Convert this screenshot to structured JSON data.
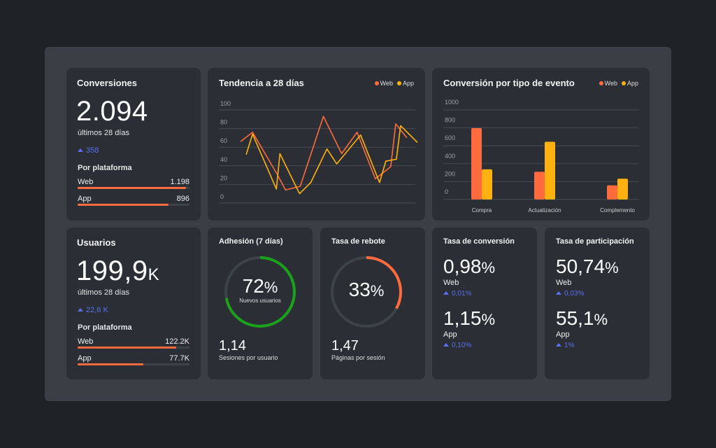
{
  "colors": {
    "web": "#ff6b3d",
    "app": "#ffb20f",
    "delta": "#5b6ff0",
    "donut_green": "#1aa31a",
    "donut_orange": "#ff6b3d"
  },
  "conversiones": {
    "title": "Conversiones",
    "value": "2.094",
    "period": "últimos 28 días",
    "delta": "358",
    "delta_icon": "triangle-up-icon",
    "platform_title": "Por plataforma",
    "platforms": [
      {
        "label": "Web",
        "value": "1.198",
        "fraction": 0.97
      },
      {
        "label": "App",
        "value": "896",
        "fraction": 0.81
      }
    ]
  },
  "usuarios": {
    "title": "Usuarios",
    "value": "199,9",
    "unit": "K",
    "period": "últimos 28 días",
    "delta": "22,6 K",
    "delta_icon": "triangle-up-icon",
    "platform_title": "Por plataforma",
    "platforms": [
      {
        "label": "Web",
        "value": "122.2K",
        "fraction": 0.88
      },
      {
        "label": "App",
        "value": "77.7K",
        "fraction": 0.59
      }
    ]
  },
  "adhesion": {
    "title": "Adhesión (7 días)",
    "percent_value": 72,
    "percent": "72",
    "percent_sign": "%",
    "caption": "Nuevos usuarios",
    "stat": "1,14",
    "stat_label": "Sesiones por usuario"
  },
  "rebote": {
    "title": "Tasa de rebote",
    "percent_value": 33,
    "percent": "33",
    "percent_sign": "%",
    "stat": "1,47",
    "stat_label": "Páginas por sesión"
  },
  "tasa_conversion": {
    "title": "Tasa de conversión",
    "items": [
      {
        "value": "0,98",
        "sign": "%",
        "label": "Web",
        "delta": "0,01%"
      },
      {
        "value": "1,15",
        "sign": "%",
        "label": "App",
        "delta": "0,10%"
      }
    ]
  },
  "tasa_participacion": {
    "title": "Tasa de participación",
    "items": [
      {
        "value": "50,74",
        "sign": "%",
        "label": "Web",
        "delta": "0,03%"
      },
      {
        "value": "55,1",
        "sign": "%",
        "label": "App",
        "delta": "1%"
      }
    ]
  },
  "chart_data": [
    {
      "type": "line",
      "title": "Tendencia a 28 días",
      "legend_position": "top-right",
      "grid": true,
      "ylim": [
        0,
        100
      ],
      "xlim": [
        0,
        28
      ],
      "yticks": [
        "100",
        "80",
        "60",
        "40",
        "20",
        "0"
      ],
      "series": [
        {
          "name": "Web",
          "color": "#ff6b3d",
          "x": [
            3.1,
            4.8,
            8.3,
            9.5,
            11.6,
            14.9,
            17.5,
            19.7,
            22.3,
            24.5,
            25.2,
            26.8
          ],
          "y": [
            66,
            76,
            31,
            14,
            18,
            93,
            53,
            76,
            26,
            39,
            85,
            70
          ]
        },
        {
          "name": "App",
          "color": "#ffb20f",
          "x": [
            3.9,
            4.8,
            8.2,
            8.7,
            11.5,
            13.1,
            15.4,
            16.8,
            20.2,
            22.9,
            23.8,
            25.3,
            25.9,
            28.3
          ],
          "y": [
            52,
            74,
            15,
            53,
            10,
            22,
            58,
            42,
            73,
            22,
            45,
            47,
            83,
            65
          ]
        }
      ]
    },
    {
      "type": "bar",
      "title": "Conversión por tipo de evento",
      "legend_position": "top-right",
      "grid": true,
      "ylim": [
        0,
        1000
      ],
      "yticks": [
        "1000",
        "800",
        "600",
        "400",
        "200",
        "0"
      ],
      "categories": [
        "Compra",
        "Actualización",
        "Complemento"
      ],
      "series": [
        {
          "name": "Web",
          "color": "#ff6b3d",
          "values": [
            797,
            310,
            158
          ]
        },
        {
          "name": "App",
          "color": "#ffb20f",
          "values": [
            337,
            645,
            232
          ]
        }
      ]
    }
  ]
}
